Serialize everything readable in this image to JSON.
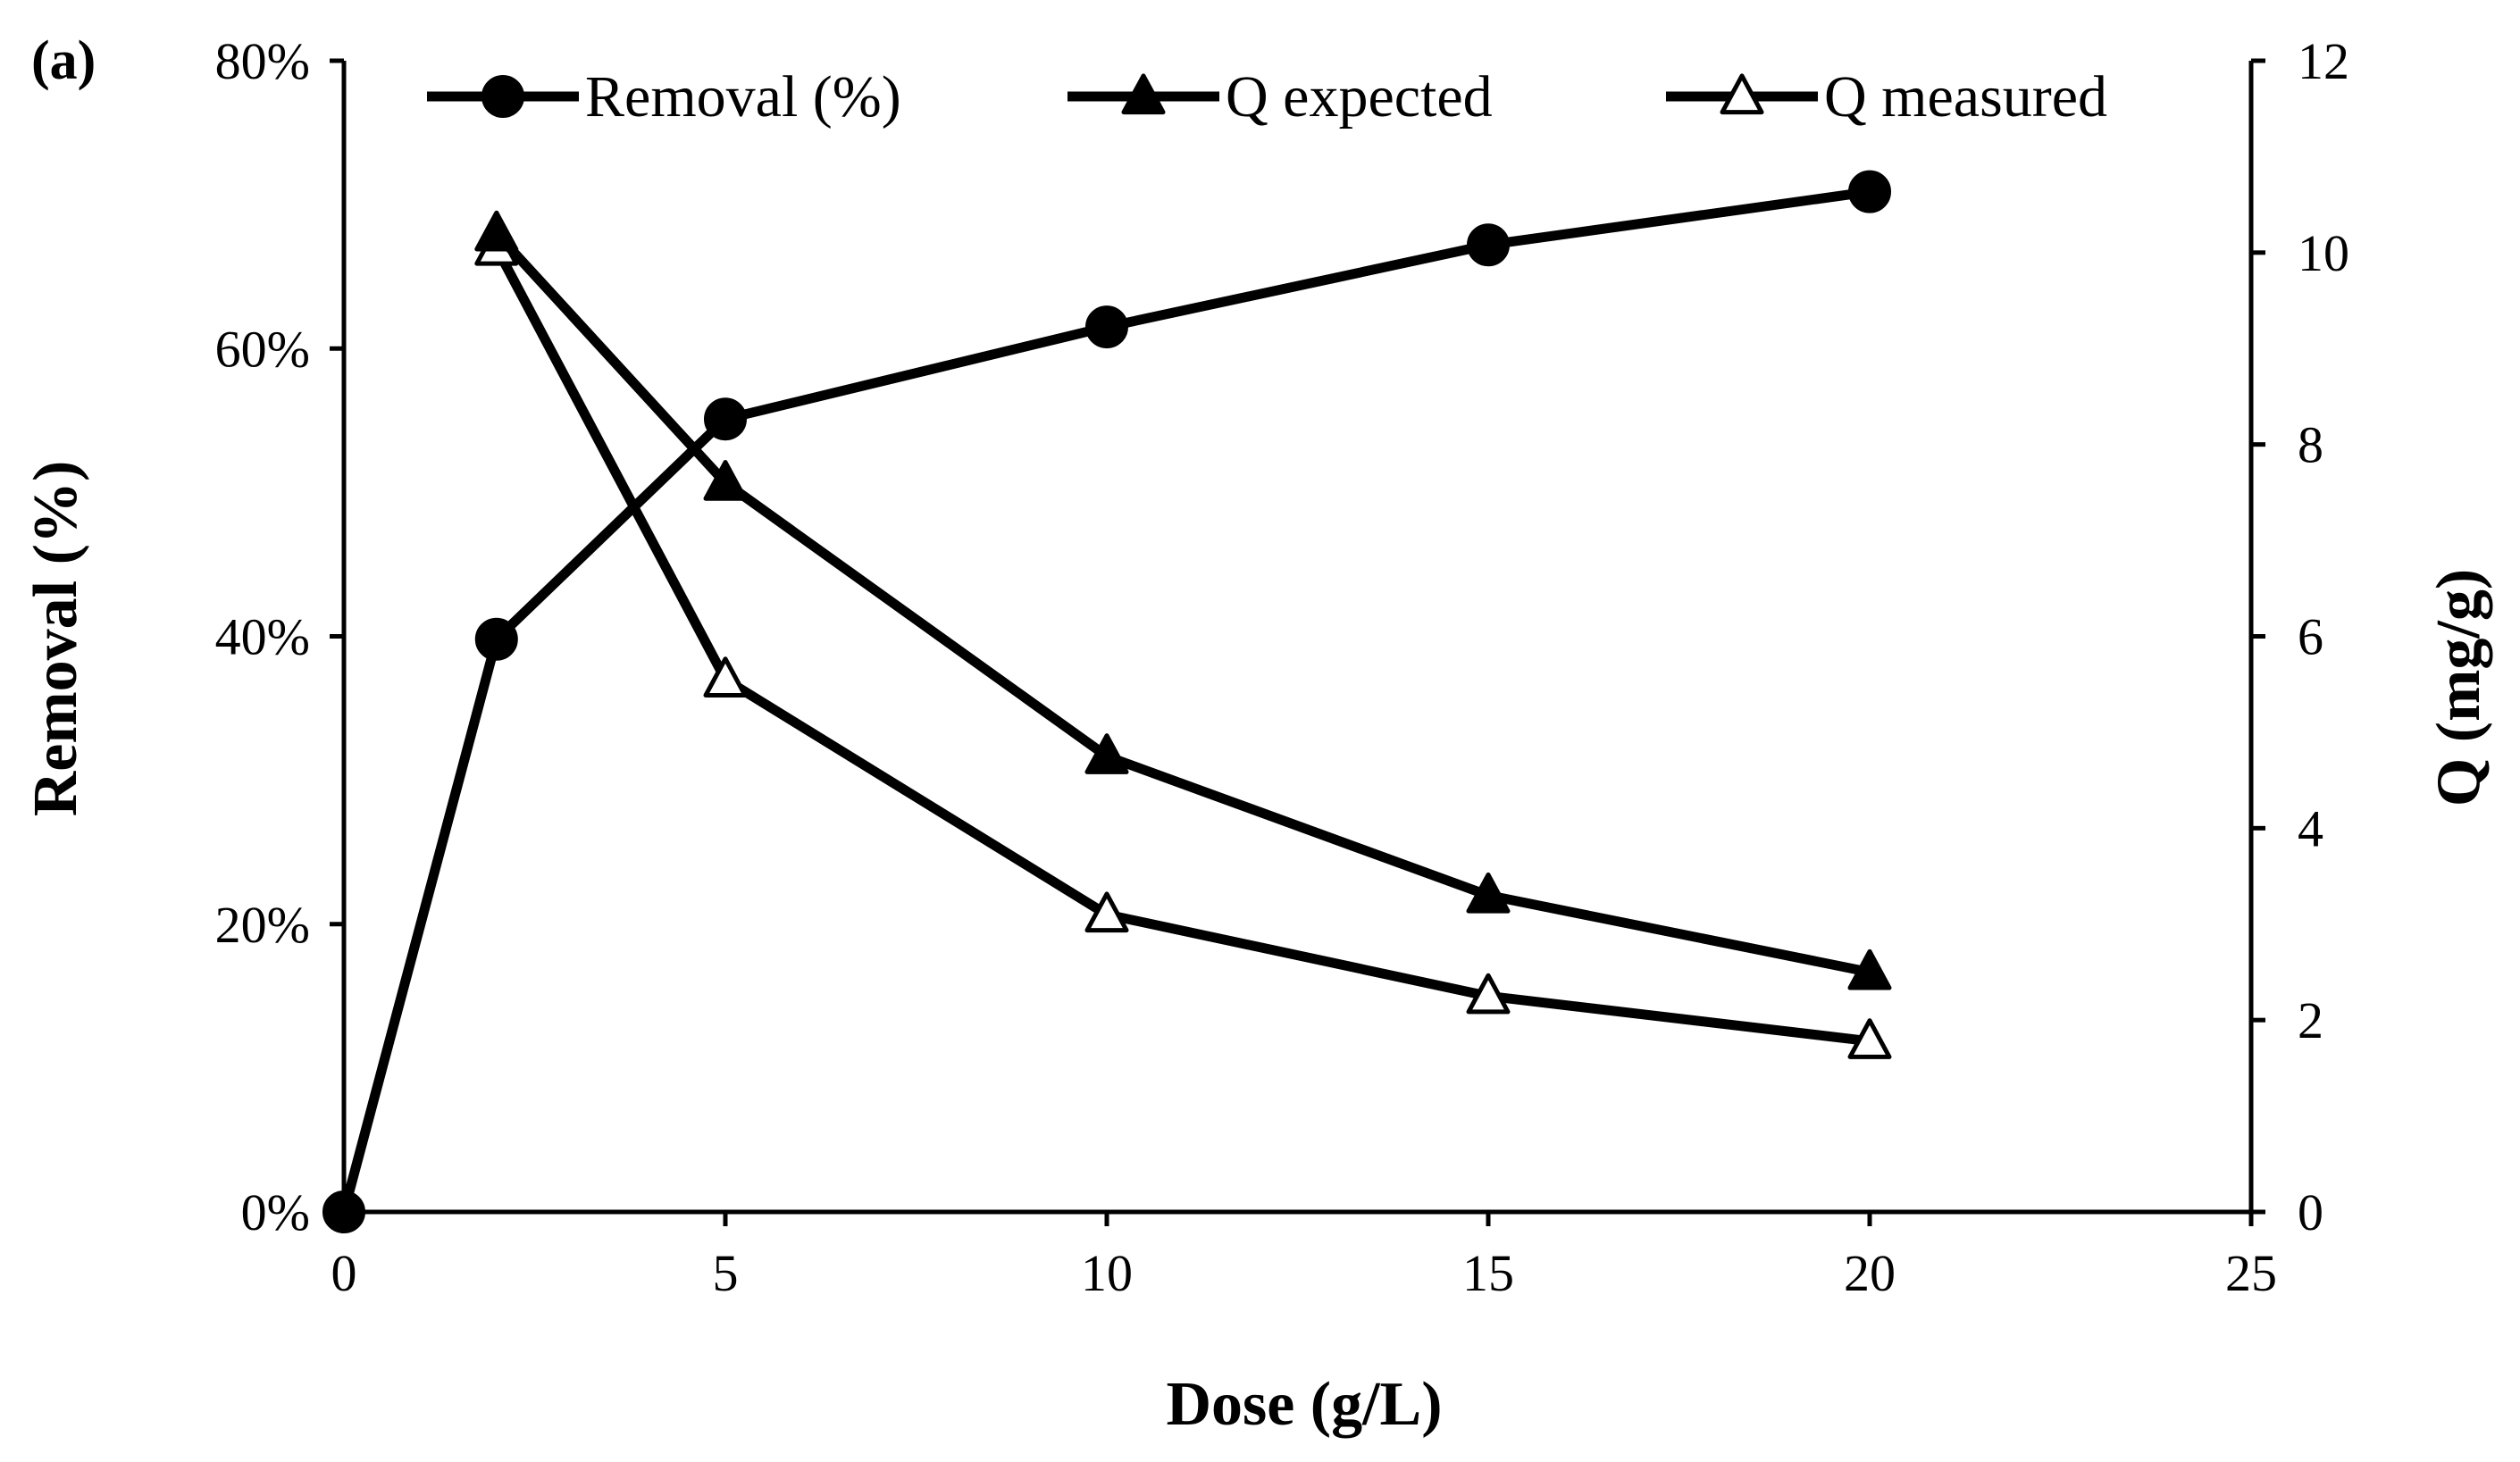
{
  "panel_label": "(a)",
  "chart_data": {
    "type": "line",
    "title": "",
    "xlabel": "Dose (g/L)",
    "ylabel_left": "Removal (%)",
    "ylabel_right": "Q (mg/g)",
    "xlim": [
      0,
      25
    ],
    "ylim_left": [
      0,
      80
    ],
    "ylim_right": [
      0,
      12
    ],
    "x_ticks": [
      "0",
      "5",
      "10",
      "15",
      "20",
      "25"
    ],
    "y_left_ticks": [
      "0%",
      "20%",
      "40%",
      "60%",
      "80%"
    ],
    "y_right_ticks": [
      "0",
      "2",
      "4",
      "6",
      "8",
      "10",
      "12"
    ],
    "grid": false,
    "legend_position": "top",
    "series": [
      {
        "name": "Removal (%)",
        "axis": "left",
        "marker": "filled-circle",
        "x": [
          0,
          2,
          5,
          10,
          15,
          20
        ],
        "values": [
          0,
          39.8,
          55.1,
          61.5,
          67.2,
          70.9
        ]
      },
      {
        "name": "Q expected",
        "axis": "right",
        "marker": "filled-triangle",
        "x": [
          2,
          5,
          10,
          15,
          20
        ],
        "values": [
          10.2,
          7.6,
          4.75,
          3.3,
          2.5
        ]
      },
      {
        "name": "Q measured",
        "axis": "right",
        "marker": "open-triangle",
        "x": [
          2,
          5,
          10,
          15,
          20
        ],
        "values": [
          10.05,
          5.55,
          3.1,
          2.25,
          1.78
        ]
      }
    ]
  }
}
